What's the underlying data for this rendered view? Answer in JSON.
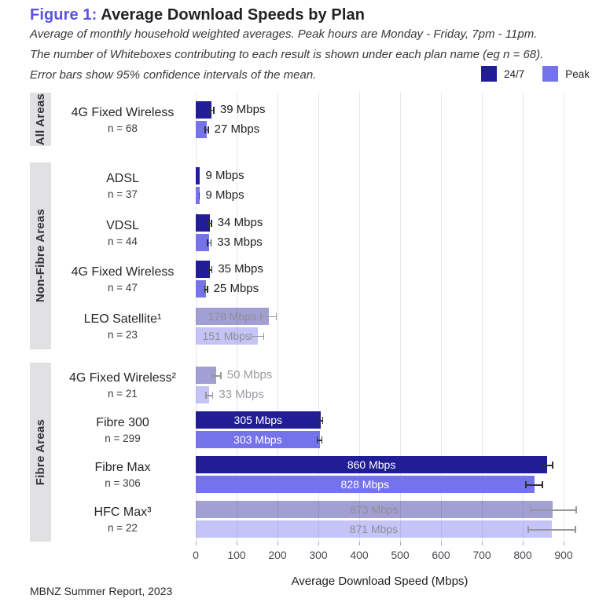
{
  "header": {
    "figure_label": "Figure 1:",
    "title": "Average Download Speeds by Plan",
    "subtitle_lines": [
      "Average of monthly household weighted averages. Peak hours are Monday - Friday, 7pm - 11pm.",
      "The number of Whiteboxes contributing to each result is shown under each plan name (eg n = 68).",
      "Error bars show 95% confidence intervals of the mean."
    ]
  },
  "legend": [
    {
      "label": "24/7",
      "color": "#211d96"
    },
    {
      "label": "Peak",
      "color": "#7473ec"
    }
  ],
  "footer": "MBNZ Summer Report, 2023",
  "colors": {
    "series_247": "#211d96",
    "series_peak": "#7473ec",
    "muted_247": "rgba(33,29,150,0.42)",
    "muted_peak": "rgba(116,115,236,0.42)",
    "inside_label_solid": "#ffffff",
    "inside_label_muted": "#8e8e96",
    "outside_label_solid": "#212126",
    "outside_label_muted": "#9b9ba3",
    "errbar_solid": "#2f2f35",
    "errbar_muted": "#97979e"
  },
  "chart_data": {
    "type": "bar",
    "orientation": "horizontal",
    "title": "Average Download Speeds by Plan",
    "xlabel": "Average Download Speed (Mbps)",
    "x_ticks": [
      0,
      100,
      200,
      300,
      400,
      500,
      600,
      700,
      800,
      900
    ],
    "xlim": [
      0,
      940
    ],
    "grid": "vertical",
    "legend_position": "top-right",
    "series_names": [
      "24/7",
      "Peak"
    ],
    "groups": [
      {
        "name": "All Areas",
        "plans": [
          {
            "plan": "4G Fixed Wireless",
            "n_label": "n = 68",
            "muted": false,
            "label_pos": "outside",
            "bars": [
              {
                "series": "24/7",
                "value": 39,
                "label": "39 Mbps",
                "ci": [
                  33,
                  46
                ]
              },
              {
                "series": "Peak",
                "value": 27,
                "label": "27 Mbps",
                "ci": [
                  22,
                  32
                ]
              }
            ]
          }
        ]
      },
      {
        "name": "Non-Fibre Areas",
        "plans": [
          {
            "plan": "ADSL",
            "n_label": "n = 37",
            "muted": false,
            "label_pos": "outside",
            "bars": [
              {
                "series": "24/7",
                "value": 9,
                "label": "9 Mbps",
                "ci": [
                  7.5,
                  10.5
                ]
              },
              {
                "series": "Peak",
                "value": 9,
                "label": "9 Mbps",
                "ci": [
                  7.5,
                  10.5
                ]
              }
            ]
          },
          {
            "plan": "VDSL",
            "n_label": "n = 44",
            "muted": false,
            "label_pos": "outside",
            "bars": [
              {
                "series": "24/7",
                "value": 34,
                "label": "34 Mbps",
                "ci": [
                  29,
                  40
                ]
              },
              {
                "series": "Peak",
                "value": 33,
                "label": "33 Mbps",
                "ci": [
                  27,
                  39
                ]
              }
            ]
          },
          {
            "plan": "4G Fixed Wireless",
            "n_label": "n = 47",
            "muted": false,
            "label_pos": "outside",
            "bars": [
              {
                "series": "24/7",
                "value": 35,
                "label": "35 Mbps",
                "ci": [
                  30,
                  41
                ]
              },
              {
                "series": "Peak",
                "value": 25,
                "label": "25 Mbps",
                "ci": [
                  21,
                  30
                ]
              }
            ]
          },
          {
            "plan": "LEO Satellite¹",
            "n_label": "n = 23",
            "muted": true,
            "label_pos": "inside",
            "bars": [
              {
                "series": "24/7",
                "value": 178,
                "label": "178 Mbps",
                "ci": [
                  158,
                  199
                ]
              },
              {
                "series": "Peak",
                "value": 151,
                "label": "151 Mbps",
                "ci": [
                  134,
                  168
                ]
              }
            ]
          }
        ]
      },
      {
        "name": "Fibre Areas",
        "plans": [
          {
            "plan": "4G Fixed Wireless²",
            "n_label": "n = 21",
            "muted": true,
            "label_pos": "outside",
            "bars": [
              {
                "series": "24/7",
                "value": 50,
                "label": "50 Mbps",
                "ci": [
                  38,
                  63
                ]
              },
              {
                "series": "Peak",
                "value": 33,
                "label": "33 Mbps",
                "ci": [
                  24,
                  43
                ]
              }
            ]
          },
          {
            "plan": "Fibre 300",
            "n_label": "n = 299",
            "muted": false,
            "label_pos": "inside",
            "bars": [
              {
                "series": "24/7",
                "value": 305,
                "label": "305 Mbps",
                "ci": [
                  298,
                  312
                ]
              },
              {
                "series": "Peak",
                "value": 303,
                "label": "303 Mbps",
                "ci": [
                  296,
                  310
                ]
              }
            ]
          },
          {
            "plan": "Fibre Max",
            "n_label": "n = 306",
            "muted": false,
            "label_pos": "inside",
            "bars": [
              {
                "series": "24/7",
                "value": 860,
                "label": "860 Mbps",
                "ci": [
                  846,
                  875
                ]
              },
              {
                "series": "Peak",
                "value": 828,
                "label": "828 Mbps",
                "ci": [
                  806,
                  850
                ]
              }
            ]
          },
          {
            "plan": "HFC Max³",
            "n_label": "n = 22",
            "muted": true,
            "label_pos": "inside",
            "bars": [
              {
                "series": "24/7",
                "value": 873,
                "label": "873 Mbps",
                "ci": [
                  818,
                  932
                ]
              },
              {
                "series": "Peak",
                "value": 871,
                "label": "871 Mbps",
                "ci": [
                  812,
                  930
                ]
              }
            ]
          }
        ]
      }
    ]
  }
}
